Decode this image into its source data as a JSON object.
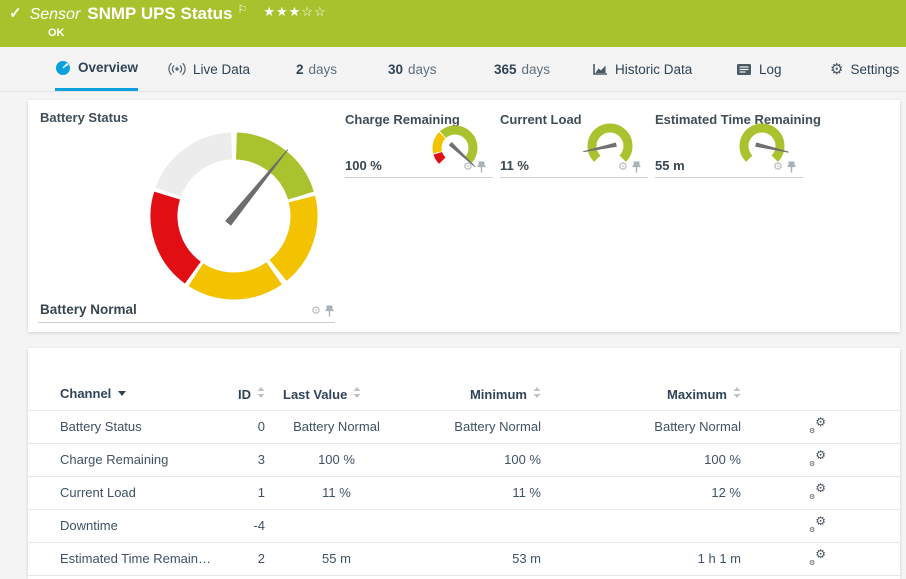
{
  "header": {
    "kind": "Sensor",
    "title": "SNMP UPS Status",
    "status": "OK",
    "stars_filled": 3,
    "stars_total": 5,
    "bg_color": "#a7c22d"
  },
  "tabs": {
    "overview": "Overview",
    "live_data": "Live Data",
    "d2_num": "2",
    "d2_label": "days",
    "d30_num": "30",
    "d30_label": "days",
    "d365_num": "365",
    "d365_label": "days",
    "historic": "Historic Data",
    "log": "Log",
    "settings": "Settings",
    "accent_color": "#0aa1dc"
  },
  "chart_data": [
    {
      "type": "gauge",
      "style": "donut-full",
      "title": "Battery Status",
      "value_label": "Battery Normal",
      "needle_deg": 39,
      "needle_color": "#6d6d6d",
      "segments": [
        {
          "color": "#a9c32f",
          "start": 2,
          "end": 73
        },
        {
          "color": "#f3c200",
          "start": 76,
          "end": 141
        },
        {
          "color": "#f3c200",
          "start": 145,
          "end": 213
        },
        {
          "color": "#e10e13",
          "start": 216,
          "end": 287
        },
        {
          "color": "#ececec",
          "start": 290,
          "end": 358
        }
      ]
    },
    {
      "type": "gauge",
      "style": "arc270",
      "title": "Charge Remaining",
      "value_label": "100 %",
      "value": 100,
      "unit": "%",
      "needle_deg": 133,
      "needle_color": "#707070",
      "segments": [
        {
          "color": "#e10e13",
          "start": -135,
          "end": -107
        },
        {
          "color": "#f3c200",
          "start": -104,
          "end": -45
        },
        {
          "color": "#a9c32f",
          "start": -42,
          "end": 135
        }
      ]
    },
    {
      "type": "gauge",
      "style": "arc270",
      "title": "Current Load",
      "value_label": "11 %",
      "value": 11,
      "unit": "%",
      "needle_deg": -102,
      "needle_color": "#707070",
      "segments": [
        {
          "color": "#a9c32f",
          "start": -135,
          "end": 135
        }
      ]
    },
    {
      "type": "gauge",
      "style": "arc270",
      "title": "Estimated Time Remaining",
      "value_label": "55 m",
      "value": 55,
      "unit": "m",
      "needle_deg": 103,
      "needle_color": "#707070",
      "segments": [
        {
          "color": "#a9c32f",
          "start": -135,
          "end": 135
        }
      ]
    }
  ],
  "table": {
    "columns": [
      {
        "label": "Channel",
        "sorted": "desc"
      },
      {
        "label": "ID"
      },
      {
        "label": "Last Value"
      },
      {
        "label": "Minimum"
      },
      {
        "label": "Maximum"
      }
    ],
    "rows": [
      [
        "Battery Status",
        "0",
        "Battery Normal",
        "Battery Normal",
        "Battery Normal"
      ],
      [
        "Charge Remaining",
        "3",
        "100 %",
        "100 %",
        "100 %"
      ],
      [
        "Current Load",
        "1",
        "11 %",
        "11 %",
        "12 %"
      ],
      [
        "Downtime",
        "-4",
        "",
        "",
        ""
      ],
      [
        "Estimated Time Remain…",
        "2",
        "55 m",
        "53 m",
        "1 h 1 m"
      ]
    ]
  }
}
